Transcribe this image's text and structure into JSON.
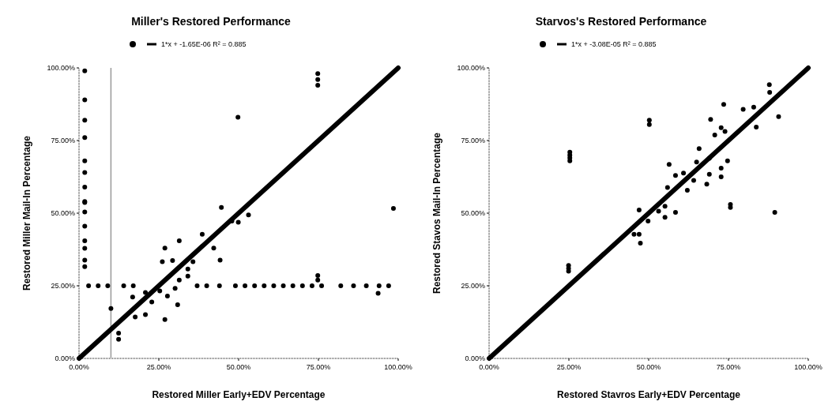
{
  "chart_data": [
    {
      "type": "scatter",
      "title": "Miller's  Restored Performance",
      "xlabel": "Restored Miller Early+EDV  Percentage",
      "ylabel": "Restored Miller Mail-In Percentage",
      "xlim": [
        0,
        100
      ],
      "ylim": [
        0,
        100
      ],
      "xticks": [
        {
          "value": 0,
          "label": "0.00%"
        },
        {
          "value": 25,
          "label": "25.00%"
        },
        {
          "value": 50,
          "label": "50.00%"
        },
        {
          "value": 75,
          "label": "75.00%"
        },
        {
          "value": 100,
          "label": "100.00%"
        }
      ],
      "yticks": [
        {
          "value": 0,
          "label": "0.00%"
        },
        {
          "value": 25,
          "label": "25.00%"
        },
        {
          "value": 50,
          "label": "50.00%"
        },
        {
          "value": 75,
          "label": "75.00%"
        },
        {
          "value": 100,
          "label": "100.00%"
        }
      ],
      "grid": false,
      "legend": "top",
      "marker": "circle",
      "ref_lines": [
        {
          "axis": "x",
          "value": 10,
          "color": "#999999"
        }
      ],
      "series": [
        {
          "color": "#000000",
          "x": [
            44.6,
            47.9,
            53.1,
            49.9,
            26.9,
            31.4,
            26.1,
            29.3,
            34.1,
            35.7,
            44.2,
            42.2,
            38.6,
            26.9,
            30.9,
            27.7,
            20.8,
            17.6,
            20.8,
            12.4,
            12.4,
            10.0,
            25.3,
            30.1,
            22.8,
            16.8,
            34.1,
            31.4,
            3,
            6,
            9,
            14,
            17,
            37,
            40,
            44,
            49,
            52,
            55,
            58,
            61,
            64,
            67,
            70,
            73,
            76,
            82,
            86,
            90,
            94,
            97,
            1.8,
            1.8,
            1.8,
            1.8,
            1.8,
            1.8,
            1.8,
            1.8,
            1.8,
            1.8,
            1.8,
            1.8,
            1.8,
            1.8,
            1.8,
            74.8,
            74.8,
            74.8,
            49.8,
            98.5,
            93.7,
            74.8,
            74.8
          ],
          "values": [
            52,
            47.3,
            49.4,
            46.9,
            38.0,
            40.5,
            33.3,
            33.7,
            30.8,
            33.3,
            33.8,
            38.0,
            42.7,
            13.4,
            18.5,
            21.5,
            22.7,
            14.3,
            15.1,
            8.7,
            6.6,
            17.2,
            23.2,
            24.1,
            19.4,
            21.1,
            28.3,
            27.0,
            25,
            25,
            25,
            25,
            25,
            25,
            25,
            25,
            25,
            25,
            25,
            25,
            25,
            25,
            25,
            25,
            25,
            25,
            25,
            25,
            25,
            25,
            25,
            99,
            89,
            82,
            76,
            68,
            64,
            59,
            54,
            53.7,
            50.4,
            45.5,
            40.5,
            37.9,
            33.8,
            31.6,
            94,
            96,
            98,
            83,
            51.6,
            22.4,
            27,
            28.5
          ]
        },
        {
          "type": "line",
          "name": "1*x + -1.65E-06 R² = 0.885",
          "color": "#000000",
          "marker": "none",
          "x": [
            0,
            100
          ],
          "values": [
            0,
            100
          ]
        }
      ]
    },
    {
      "type": "scatter",
      "title": "Starvos's Restored Performance",
      "xlabel": "Restored Stavros Early+EDV  Percentage",
      "ylabel": "Restored Stavos  Mail-In Percentage",
      "xlim": [
        0,
        100
      ],
      "ylim": [
        0,
        100
      ],
      "xticks": [
        {
          "value": 0,
          "label": "0.00%"
        },
        {
          "value": 25,
          "label": "25.00%"
        },
        {
          "value": 50,
          "label": "50.00%"
        },
        {
          "value": 75,
          "label": "75.00%"
        },
        {
          "value": 100,
          "label": "100.00%"
        }
      ],
      "yticks": [
        {
          "value": 0,
          "label": "0.00%"
        },
        {
          "value": 25,
          "label": "25.00%"
        },
        {
          "value": 50,
          "label": "50.00%"
        },
        {
          "value": 75,
          "label": "75.00%"
        },
        {
          "value": 100,
          "label": "100.00%"
        }
      ],
      "grid": false,
      "legend": "top",
      "marker": "circle",
      "series": [
        {
          "color": "#000000",
          "x": [
            87.8,
            87.9,
            73.5,
            90.7,
            79.6,
            82.9,
            69.4,
            72.7,
            83.7,
            70.7,
            73.9,
            65.8,
            74.7,
            72.7,
            72.7,
            69.0,
            68.2,
            64.1,
            56.4,
            62.1,
            55.9,
            58.4,
            60.9,
            65.0,
            69.0,
            50.2,
            50.2,
            25.3,
            25.3,
            25.3,
            25.3,
            75.6,
            75.6,
            47.4,
            47.0,
            45.4,
            47.0,
            49.8,
            53.1,
            55.1,
            58.4,
            55.1,
            24.9,
            24.9,
            24.9,
            89.5
          ],
          "values": [
            94.2,
            91.6,
            87.4,
            83.2,
            85.7,
            86.5,
            82.3,
            79.4,
            79.6,
            76.9,
            78.1,
            72.2,
            68.0,
            65.5,
            62.5,
            63.4,
            60.0,
            61.3,
            66.8,
            57.9,
            58.8,
            63.0,
            63.8,
            67.6,
            68.9,
            80.5,
            82,
            68,
            69,
            70,
            71,
            52,
            53,
            39.7,
            42.7,
            42.7,
            51.1,
            47.3,
            50.7,
            48.6,
            50.3,
            52.4,
            30,
            31,
            32,
            50.3
          ]
        },
        {
          "type": "line",
          "name": "1*x + -3.08E-05 R² = 0.885",
          "color": "#000000",
          "marker": "none",
          "x": [
            0,
            100
          ],
          "values": [
            0,
            100
          ]
        }
      ]
    }
  ]
}
